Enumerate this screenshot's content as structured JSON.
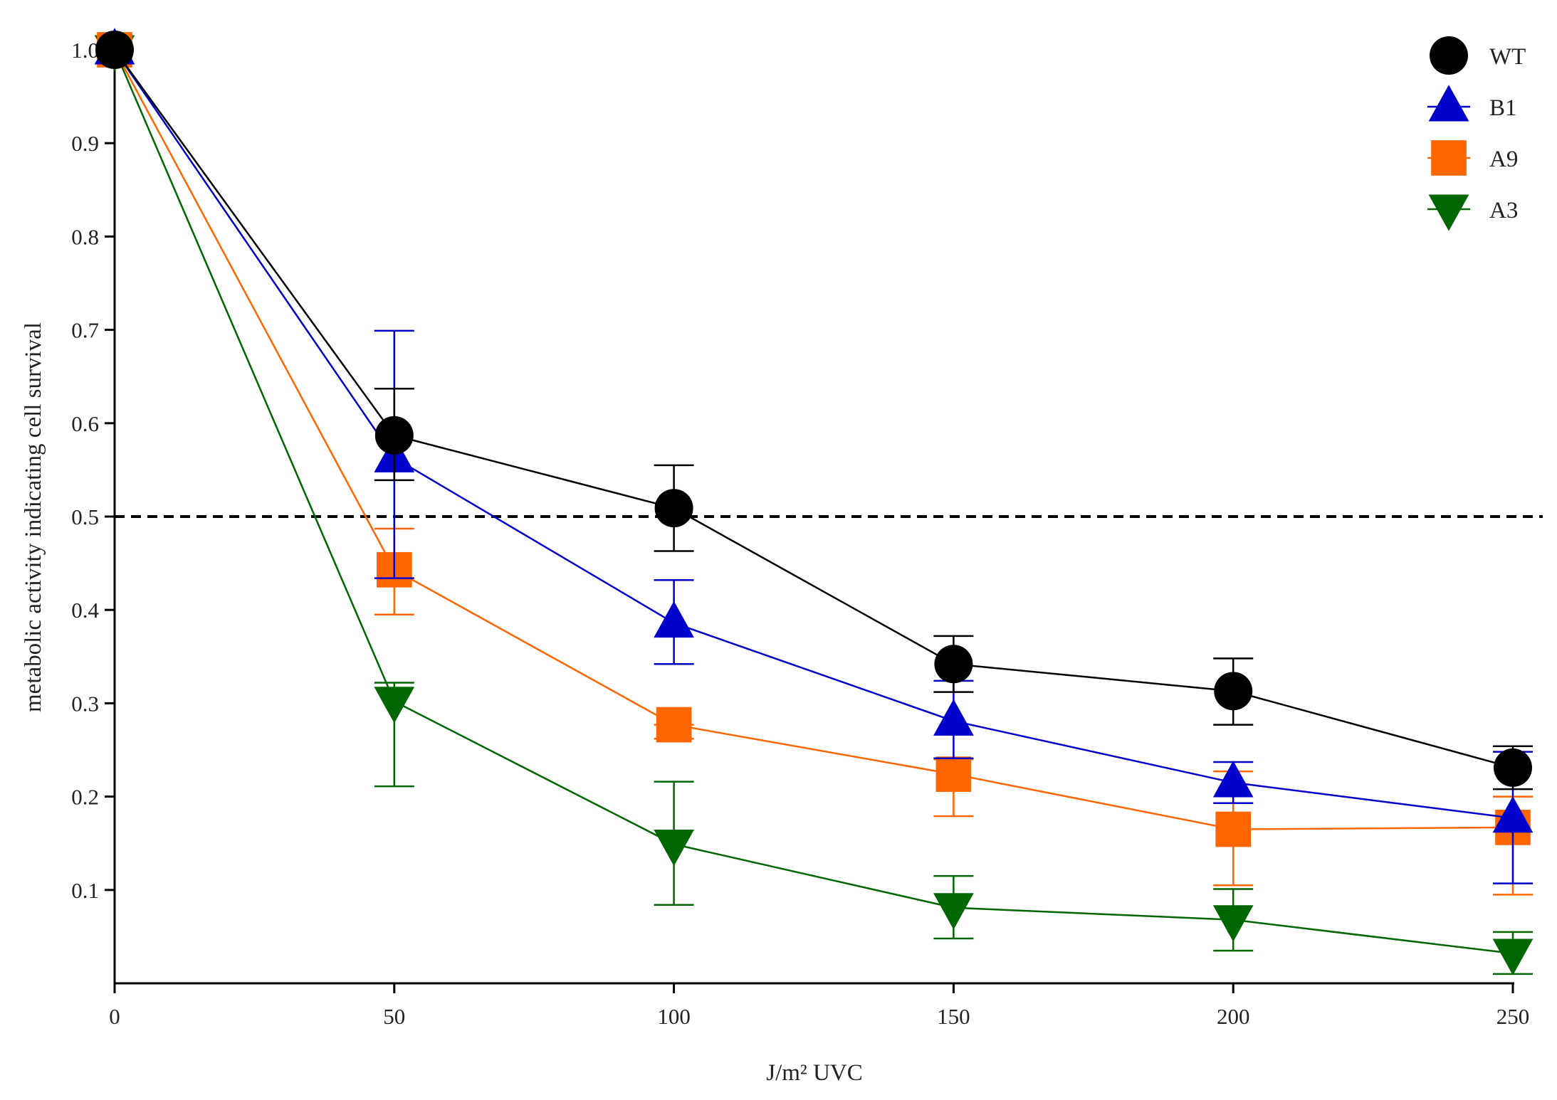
{
  "chart_data": {
    "type": "line",
    "title": "",
    "xlabel": "J/m² UVC",
    "ylabel": "metabolic activity indicating cell survival",
    "x": [
      0,
      50,
      100,
      150,
      200,
      250
    ],
    "xlim": [
      0,
      250
    ],
    "ylim": [
      0,
      1.0
    ],
    "x_ticks": [
      0,
      50,
      100,
      150,
      200,
      250
    ],
    "y_ticks": [
      0.1,
      0.2,
      0.3,
      0.4,
      0.5,
      0.6,
      0.7,
      0.8,
      0.9,
      1.0
    ],
    "x_tick_labels": [
      "0",
      "50",
      "100",
      "150",
      "200",
      "250"
    ],
    "y_tick_labels": [
      "0.1",
      "0.2",
      "0.3",
      "0.4",
      "0.5",
      "0.6",
      "0.7",
      "0.8",
      "0.9",
      "1.0"
    ],
    "grid": false,
    "legend_position": "top-right",
    "reference_line": {
      "y": 0.5,
      "style": "dashed",
      "color": "#000000"
    },
    "series": [
      {
        "name": "WT",
        "color": "#000000",
        "marker": "circle",
        "values": [
          1.0,
          0.587,
          0.509,
          0.342,
          0.313,
          0.231
        ],
        "err_upper": [
          1.0,
          0.637,
          0.555,
          0.372,
          0.348,
          0.254
        ],
        "err_lower": [
          1.0,
          0.539,
          0.463,
          0.312,
          0.277,
          0.208
        ]
      },
      {
        "name": "B1",
        "color": "#0000cc",
        "marker": "triangle-up",
        "values": [
          1.0,
          0.563,
          0.386,
          0.281,
          0.215,
          0.177
        ],
        "err_upper": [
          1.0,
          0.699,
          0.432,
          0.324,
          0.237,
          0.248
        ],
        "err_lower": [
          1.0,
          0.434,
          0.342,
          0.241,
          0.193,
          0.107
        ]
      },
      {
        "name": "A9",
        "color": "#ff6600",
        "marker": "square",
        "values": [
          1.0,
          0.443,
          0.277,
          0.224,
          0.165,
          0.167
        ],
        "err_upper": [
          1.0,
          0.487,
          0.277,
          0.24,
          0.227,
          0.2
        ],
        "err_lower": [
          1.0,
          0.395,
          0.262,
          0.179,
          0.105,
          0.095
        ]
      },
      {
        "name": "A3",
        "color": "#006600",
        "marker": "triangle-down",
        "values": [
          1.0,
          0.302,
          0.149,
          0.081,
          0.068,
          0.032
        ],
        "err_upper": [
          1.0,
          0.322,
          0.216,
          0.115,
          0.101,
          0.055
        ],
        "err_lower": [
          1.0,
          0.211,
          0.084,
          0.048,
          0.035,
          0.01
        ]
      }
    ]
  }
}
